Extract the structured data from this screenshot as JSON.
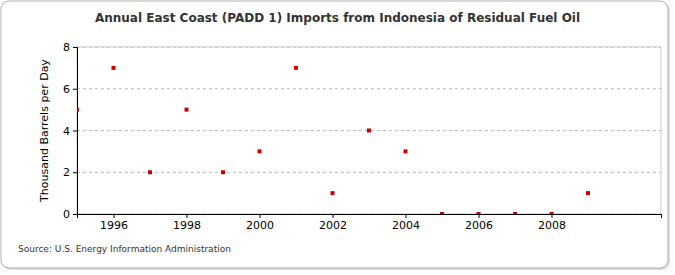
{
  "chart_data": {
    "type": "scatter",
    "title": "Annual East Coast (PADD 1) Imports from Indonesia of Residual Fuel Oil",
    "y_label": "Thousand Barrels per Day",
    "source": "Source: U.S. Energy Information Administration",
    "x": [
      1995,
      1996,
      1997,
      1998,
      1999,
      2000,
      2001,
      2002,
      2003,
      2004,
      2005,
      2006,
      2007,
      2008,
      2009
    ],
    "values": [
      5,
      7,
      2,
      5,
      2,
      3,
      7,
      1,
      4,
      3,
      0,
      0,
      0,
      0,
      1
    ],
    "color": "#cc0000",
    "marker": "square",
    "xlim": [
      1995,
      2011
    ],
    "xticks": [
      1996,
      1998,
      2000,
      2002,
      2004,
      2006,
      2008
    ],
    "ylim": [
      0,
      8
    ],
    "yticks": [
      0,
      2,
      4,
      6,
      8
    ],
    "grid": true
  }
}
